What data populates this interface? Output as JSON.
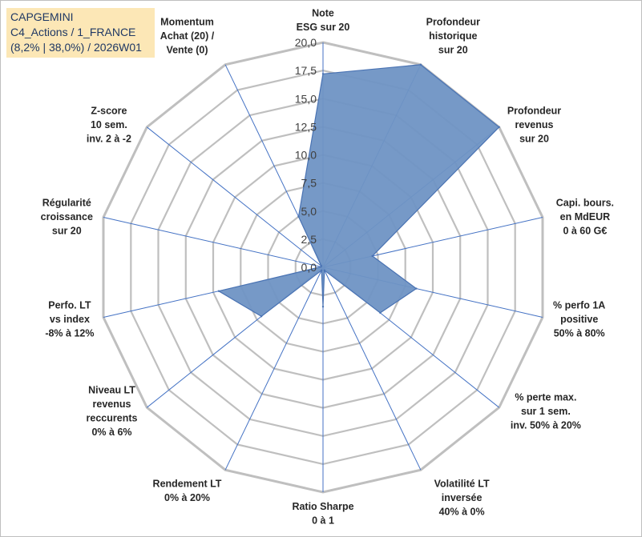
{
  "title": {
    "line1": "CAPGEMINI",
    "line2": "C4_Actions / 1_FRANCE",
    "line3": "(8,2% | 38,0%) / 2026W01"
  },
  "colors": {
    "grid": "#bfbfbf",
    "spoke": "#4472c4",
    "fill": "#6f94c4",
    "stroke": "#4a73b3",
    "title_bg": "#fce7b6"
  },
  "chart_data": {
    "type": "radar",
    "range": [
      0,
      20
    ],
    "tick_step": 2.5,
    "tick_labels": [
      "0,0",
      "2,5",
      "5,0",
      "7,5",
      "10,0",
      "12,5",
      "15,0",
      "17,5",
      "20,0"
    ],
    "axes": [
      {
        "lines": [
          "Note",
          "ESG sur 20"
        ],
        "value": 17.2
      },
      {
        "lines": [
          "Profondeur",
          "historique",
          "sur 20"
        ],
        "value": 20.0
      },
      {
        "lines": [
          "Profondeur",
          "revenus",
          "sur 20"
        ],
        "value": 20.0
      },
      {
        "lines": [
          "Capi. bours.",
          "en MdEUR",
          "0 à 60 G€"
        ],
        "value": 4.5
      },
      {
        "lines": [
          "% perfo 1A",
          "positive",
          "50% à 80%"
        ],
        "value": 8.5
      },
      {
        "lines": [
          "% perte max.",
          "sur 1 sem.",
          "inv. 50% à 20%"
        ],
        "value": 6.5
      },
      {
        "lines": [
          "Volatilité LT",
          "inversée",
          "40% à 0%"
        ],
        "value": 0.3
      },
      {
        "lines": [
          "Ratio Sharpe",
          "0 à 1"
        ],
        "value": 3.5
      },
      {
        "lines": [
          "Rendement LT",
          "0% à 20%"
        ],
        "value": 0.3
      },
      {
        "lines": [
          "Niveau LT",
          "revenus",
          "reccurents",
          "0% à 6%"
        ],
        "value": 7.0
      },
      {
        "lines": [
          "Perfo. LT",
          "vs index",
          "-8% à 12%"
        ],
        "value": 9.5
      },
      {
        "lines": [
          "Régularité",
          "croissance",
          "sur 20"
        ],
        "value": 0.2
      },
      {
        "lines": [
          "Z-score",
          "10 sem.",
          "inv. 2 à -2"
        ],
        "value": 0.2
      },
      {
        "lines": [
          "Momentum",
          "Achat (20) /",
          "Vente (0)"
        ],
        "value": 5.0
      }
    ]
  }
}
